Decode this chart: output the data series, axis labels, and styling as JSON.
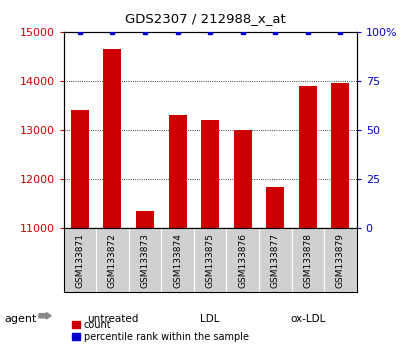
{
  "title": "GDS2307 / 212988_x_at",
  "samples": [
    "GSM133871",
    "GSM133872",
    "GSM133873",
    "GSM133874",
    "GSM133875",
    "GSM133876",
    "GSM133877",
    "GSM133878",
    "GSM133879"
  ],
  "counts": [
    13400,
    14650,
    11350,
    13300,
    13200,
    13000,
    11850,
    13900,
    13950
  ],
  "percentiles": [
    100,
    100,
    100,
    100,
    100,
    100,
    100,
    100,
    100
  ],
  "bar_color": "#cc0000",
  "percentile_color": "#0000cc",
  "ylim_left": [
    11000,
    15000
  ],
  "ylim_right": [
    0,
    100
  ],
  "yticks_left": [
    11000,
    12000,
    13000,
    14000,
    15000
  ],
  "yticks_right": [
    0,
    25,
    50,
    75,
    100
  ],
  "groups": [
    {
      "label": "untreated",
      "start": 0,
      "end": 3,
      "color": "#ccffcc"
    },
    {
      "label": "LDL",
      "start": 3,
      "end": 6,
      "color": "#aaffaa"
    },
    {
      "label": "ox-LDL",
      "start": 6,
      "end": 9,
      "color": "#66ee66"
    }
  ],
  "agent_label": "agent",
  "legend_count_label": "count",
  "legend_percentile_label": "percentile rank within the sample",
  "background_color": "#ffffff",
  "plot_bg_color": "#ffffff",
  "sample_area_color": "#d0d0d0",
  "bar_width": 0.55
}
